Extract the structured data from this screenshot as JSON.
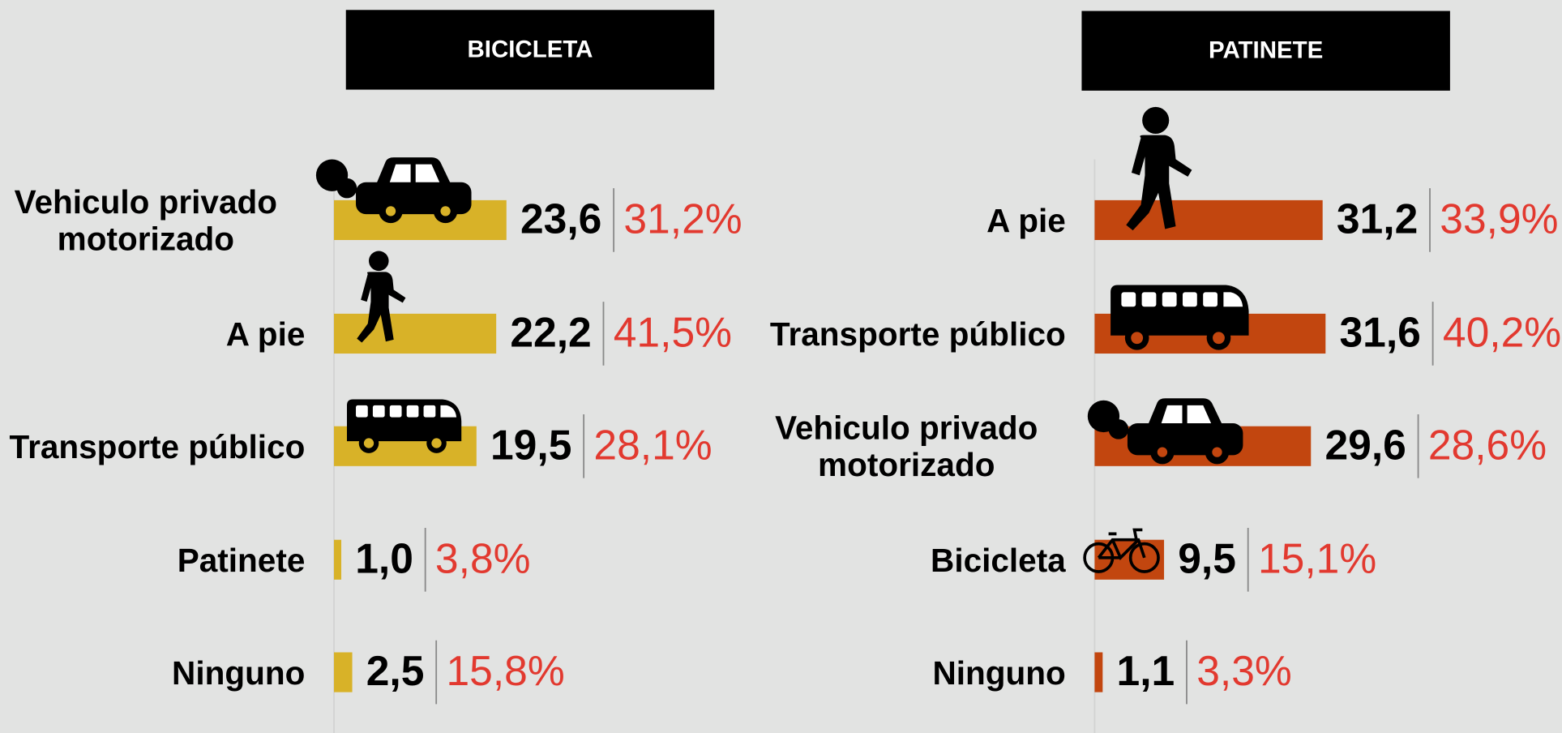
{
  "chart_data": [
    {
      "type": "bar",
      "title": "BICICLETA",
      "color": "#d8b228",
      "categories": [
        "Vehiculo privado motorizado",
        "A pie",
        "Transporte público",
        "Patinete",
        "Ninguno"
      ],
      "values": [
        23.6,
        22.2,
        19.5,
        1.0,
        2.5
      ],
      "value_labels": [
        "23,6",
        "22,2",
        "19,5",
        "1,0",
        "2,5"
      ],
      "shares": [
        31.2,
        41.5,
        28.1,
        3.8,
        15.8
      ],
      "share_labels": [
        "31,2%",
        "41,5%",
        "28,1%",
        "3,8%",
        "15,8%"
      ],
      "share_color": "#e2392f"
    },
    {
      "type": "bar",
      "title": "PATINETE",
      "color": "#c2460f",
      "categories": [
        "A pie",
        "Transporte público",
        "Vehiculo privado motorizado",
        "Bicicleta",
        "Ninguno"
      ],
      "values": [
        31.2,
        31.6,
        29.6,
        9.5,
        1.1
      ],
      "value_labels": [
        "31,2",
        "31,6",
        "29,6",
        "9,5",
        "1,1"
      ],
      "shares": [
        33.9,
        40.2,
        28.6,
        15.1,
        3.3
      ],
      "share_labels": [
        "33,9%",
        "40,2%",
        "28,6%",
        "15,1%",
        "3,3%"
      ],
      "share_color": "#e2392f"
    }
  ]
}
